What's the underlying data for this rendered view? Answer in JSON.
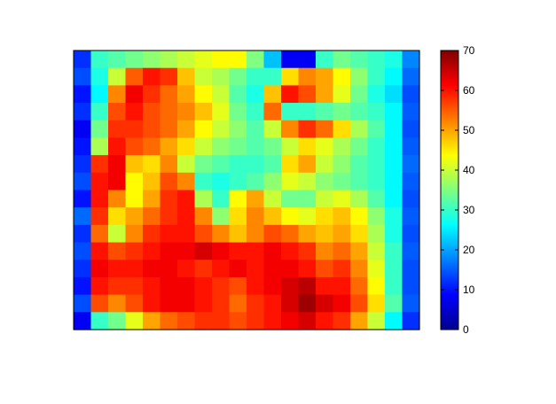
{
  "chart_data": {
    "type": "heatmap",
    "title": "",
    "xlabel": "",
    "ylabel": "",
    "x_ticks": [],
    "y_ticks": [],
    "colormap": "jet",
    "color_range": [
      0,
      70
    ],
    "colorbar": {
      "placement": "right",
      "ticks": [
        0,
        10,
        20,
        30,
        40,
        50,
        60,
        70
      ],
      "tick_labels": [
        "0",
        "10",
        "20",
        "30",
        "40",
        "50",
        "60",
        "70"
      ]
    },
    "rows": 16,
    "cols": 20,
    "values": [
      [
        12,
        30,
        32,
        34,
        36,
        38,
        40,
        42,
        44,
        44,
        35,
        22,
        8,
        8,
        30,
        34,
        32,
        30,
        28,
        18
      ],
      [
        14,
        28,
        40,
        55,
        60,
        58,
        48,
        40,
        38,
        34,
        30,
        30,
        46,
        52,
        50,
        44,
        36,
        30,
        26,
        16
      ],
      [
        10,
        26,
        52,
        62,
        58,
        54,
        50,
        44,
        40,
        32,
        28,
        48,
        60,
        56,
        50,
        42,
        34,
        28,
        24,
        14
      ],
      [
        12,
        30,
        56,
        60,
        56,
        54,
        52,
        48,
        42,
        34,
        30,
        54,
        30,
        30,
        32,
        34,
        32,
        30,
        26,
        15
      ],
      [
        8,
        34,
        58,
        58,
        56,
        54,
        50,
        44,
        40,
        36,
        32,
        40,
        52,
        58,
        54,
        46,
        38,
        32,
        26,
        14
      ],
      [
        10,
        38,
        60,
        56,
        54,
        50,
        46,
        40,
        36,
        34,
        32,
        34,
        40,
        46,
        42,
        38,
        34,
        30,
        26,
        15
      ],
      [
        12,
        58,
        62,
        48,
        46,
        52,
        40,
        34,
        32,
        30,
        30,
        32,
        46,
        50,
        40,
        36,
        32,
        30,
        26,
        16
      ],
      [
        14,
        60,
        62,
        44,
        48,
        56,
        52,
        30,
        28,
        30,
        32,
        36,
        42,
        40,
        36,
        34,
        32,
        30,
        26,
        15
      ],
      [
        10,
        60,
        52,
        44,
        50,
        58,
        60,
        38,
        30,
        44,
        50,
        40,
        34,
        34,
        40,
        42,
        38,
        32,
        26,
        14
      ],
      [
        16,
        58,
        46,
        50,
        54,
        58,
        60,
        52,
        36,
        46,
        52,
        48,
        44,
        42,
        46,
        48,
        44,
        36,
        28,
        15
      ],
      [
        12,
        54,
        40,
        52,
        58,
        60,
        60,
        56,
        52,
        48,
        52,
        56,
        54,
        50,
        48,
        50,
        46,
        38,
        28,
        14
      ],
      [
        14,
        60,
        56,
        58,
        60,
        62,
        62,
        64,
        62,
        60,
        60,
        62,
        60,
        58,
        52,
        54,
        50,
        40,
        30,
        15
      ],
      [
        12,
        62,
        60,
        60,
        62,
        62,
        60,
        58,
        60,
        62,
        60,
        62,
        62,
        60,
        56,
        58,
        52,
        42,
        30,
        14
      ],
      [
        10,
        60,
        58,
        58,
        60,
        62,
        62,
        60,
        58,
        56,
        60,
        62,
        64,
        66,
        60,
        60,
        54,
        44,
        30,
        14
      ],
      [
        14,
        56,
        52,
        56,
        60,
        62,
        62,
        60,
        58,
        54,
        58,
        60,
        64,
        68,
        64,
        62,
        56,
        46,
        32,
        15
      ],
      [
        8,
        30,
        34,
        42,
        50,
        54,
        56,
        58,
        58,
        56,
        58,
        60,
        62,
        64,
        60,
        58,
        50,
        40,
        26,
        12
      ]
    ]
  }
}
